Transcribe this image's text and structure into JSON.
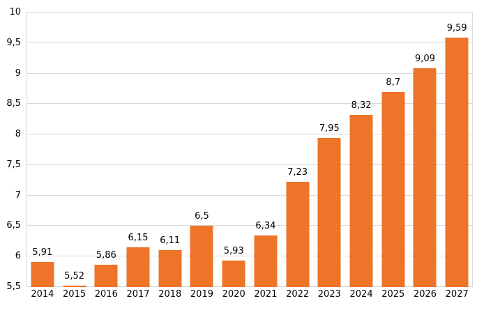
{
  "chart_data": {
    "type": "bar",
    "title": "",
    "xlabel": "",
    "ylabel": "",
    "categories": [
      "2014",
      "2015",
      "2016",
      "2017",
      "2018",
      "2019",
      "2020",
      "2021",
      "2022",
      "2023",
      "2024",
      "2025",
      "2026",
      "2027"
    ],
    "values": [
      5.91,
      5.52,
      5.86,
      6.15,
      6.11,
      6.5,
      5.93,
      6.34,
      7.23,
      7.95,
      8.32,
      8.7,
      9.09,
      9.59
    ],
    "value_labels": [
      "5,91",
      "5,52",
      "5,86",
      "6,15",
      "6,11",
      "6,5",
      "5,93",
      "6,34",
      "7,23",
      "7,95",
      "8,32",
      "8,7",
      "9,09",
      "9,59"
    ],
    "ylim": [
      5.5,
      10
    ],
    "yticks": [
      {
        "value": 5.5,
        "label": "5,5"
      },
      {
        "value": 6,
        "label": "6"
      },
      {
        "value": 6.5,
        "label": "6,5"
      },
      {
        "value": 7,
        "label": "7"
      },
      {
        "value": 7.5,
        "label": "7,5"
      },
      {
        "value": 8,
        "label": "8"
      },
      {
        "value": 8.5,
        "label": "8,5"
      },
      {
        "value": 9,
        "label": "9"
      },
      {
        "value": 9.5,
        "label": "9,5"
      },
      {
        "value": 10,
        "label": "10"
      }
    ],
    "grid": true,
    "legend_position": "none",
    "decimal_separator": ",",
    "colors": {
      "bar": "#ED7429",
      "grid": "#D9D9D9",
      "text": "#000000",
      "background": "#FFFFFF"
    }
  }
}
